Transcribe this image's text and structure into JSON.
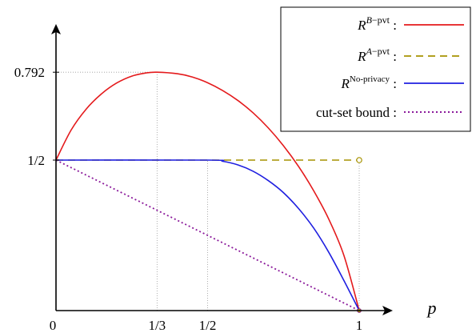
{
  "chart_data": {
    "type": "line",
    "xlabel": "p",
    "ylabel": "",
    "xlim": [
      0,
      1.08
    ],
    "ylim": [
      0,
      0.85
    ],
    "origin_label": "0",
    "x_ticks": [
      {
        "value": 0.3333,
        "label": "1/3"
      },
      {
        "value": 0.5,
        "label": "1/2"
      },
      {
        "value": 1.0,
        "label": "1"
      }
    ],
    "y_ticks": [
      {
        "value": 0.5,
        "label": "1/2"
      },
      {
        "value": 0.792,
        "label": "0.792"
      }
    ],
    "legend_position": "top-right",
    "series": [
      {
        "key": "b_pvt",
        "legend_base": "R",
        "legend_sup": "B−pvt",
        "legend_suffix": " :",
        "color": "#e41a1c",
        "dash": "solid",
        "x": [
          0,
          0.05,
          0.1,
          0.15,
          0.2,
          0.25,
          0.3,
          0.3333,
          0.4,
          0.45,
          0.5,
          0.55,
          0.6,
          0.65,
          0.7,
          0.75,
          0.8,
          0.85,
          0.9,
          0.95,
          1.0
        ],
        "y": [
          0.5,
          0.6,
          0.67,
          0.72,
          0.756,
          0.779,
          0.79,
          0.792,
          0.787,
          0.776,
          0.757,
          0.731,
          0.698,
          0.657,
          0.607,
          0.548,
          0.479,
          0.398,
          0.303,
          0.182,
          0
        ]
      },
      {
        "key": "a_pvt",
        "legend_base": "R",
        "legend_sup": "A−pvt",
        "legend_suffix": " :",
        "color": "#a69200",
        "dash": "dashed",
        "x": [
          0,
          1.0
        ],
        "y": [
          0.5,
          0.5
        ],
        "end_marker": "open-circle"
      },
      {
        "key": "no_privacy",
        "legend_base": "R",
        "legend_sup": "No-privacy",
        "legend_suffix": " :",
        "color": "#1f1fe0",
        "dash": "solid",
        "x": [
          0,
          0.5,
          0.55,
          0.6,
          0.65,
          0.7,
          0.75,
          0.8,
          0.85,
          0.9,
          0.95,
          1.0
        ],
        "y": [
          0.5,
          0.5,
          0.496,
          0.484,
          0.463,
          0.432,
          0.392,
          0.339,
          0.274,
          0.193,
          0.099,
          0
        ]
      },
      {
        "key": "cutset",
        "legend_base": "cut-set bound",
        "legend_sup": "",
        "legend_suffix": " :",
        "color": "#8b1a9b",
        "dash": "dotted",
        "x": [
          0,
          1.0
        ],
        "y": [
          0.5,
          0
        ]
      }
    ]
  }
}
